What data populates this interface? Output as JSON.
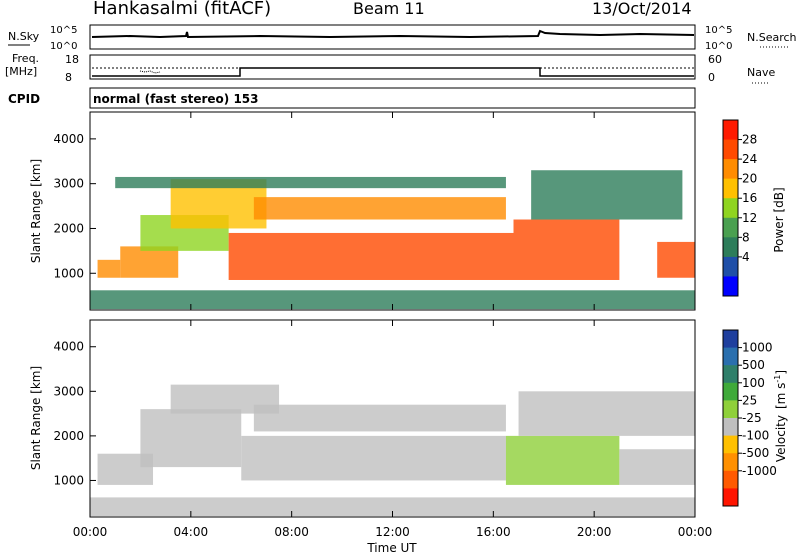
{
  "header": {
    "station": "Hankasalmi (fitACF)",
    "beam": "Beam 11",
    "date": "13/Oct/2014"
  },
  "strip": {
    "nsky_label": "N.Sky",
    "nsky_ticks": [
      "10^5",
      "10^0"
    ],
    "nsearch_label": "N.Search",
    "nsearch_ticks": [
      "10^5",
      "10^0"
    ],
    "freq_label_1": "Freq.",
    "freq_label_2": "[MHz]",
    "freq_ticks": [
      "18",
      "8"
    ],
    "nave_label": "Nave",
    "nave_ticks": [
      "60",
      "0"
    ],
    "cpid_label": "CPID",
    "cpid_value": "normal (fast stereo) 153"
  },
  "power_colorbar": {
    "label": "Power [dB]",
    "ticks": [
      "28",
      "24",
      "20",
      "16",
      "12",
      "8",
      "4"
    ],
    "colors": [
      "#ff1a00",
      "#ff4a00",
      "#ff8c00",
      "#ffc000",
      "#8fd420",
      "#4aa050",
      "#2d7d5a",
      "#1f4fa8",
      "#0000ff"
    ]
  },
  "velocity_colorbar": {
    "label_main": "Velocity",
    "label_unit": "[m s",
    "label_exp": "-1",
    "label_close": "]",
    "ticks": [
      "1000",
      "500",
      "100",
      "25",
      "-25",
      "-100",
      "-500",
      "-1000"
    ],
    "colors": [
      "#1f3f9e",
      "#2a6fae",
      "#2f7f6a",
      "#3faa3a",
      "#8fd03a",
      "#bfbfbf",
      "#ffc000",
      "#ff9000",
      "#ff5a00",
      "#ff1500"
    ]
  },
  "x_axis": {
    "label": "Time UT",
    "ticks": [
      "00:00",
      "04:00",
      "08:00",
      "12:00",
      "16:00",
      "20:00",
      "00:00"
    ]
  },
  "y_axis": {
    "label": "Slant Range [km]",
    "ticks": [
      "4000",
      "3000",
      "2000",
      "1000"
    ]
  },
  "chart_data": [
    {
      "type": "heatmap",
      "title": "",
      "xlabel": "",
      "ylabel": "Slant Range [km]",
      "xlim": [
        0,
        24
      ],
      "ylim": [
        180,
        4600
      ],
      "colorbar": "Power [dB]",
      "clim": [
        0,
        30
      ],
      "bands": [
        {
          "t": [
            0,
            24
          ],
          "r": [
            200,
            620
          ],
          "value": 6
        },
        {
          "t": [
            0.3,
            1.2
          ],
          "r": [
            900,
            1300
          ],
          "value": 24
        },
        {
          "t": [
            1.2,
            3.5
          ],
          "r": [
            900,
            1600
          ],
          "value": 22
        },
        {
          "t": [
            2.0,
            5.5
          ],
          "r": [
            1500,
            2300
          ],
          "value": 14
        },
        {
          "t": [
            3.2,
            7.0
          ],
          "r": [
            2000,
            3100
          ],
          "value": 20
        },
        {
          "t": [
            5.5,
            16.8
          ],
          "r": [
            850,
            1900
          ],
          "value": 26
        },
        {
          "t": [
            6.5,
            16.5
          ],
          "r": [
            2200,
            2700
          ],
          "value": 24
        },
        {
          "t": [
            1.0,
            16.5
          ],
          "r": [
            2900,
            3150
          ],
          "value": 8
        },
        {
          "t": [
            16.8,
            21.0
          ],
          "r": [
            850,
            2200
          ],
          "value": 27
        },
        {
          "t": [
            17.5,
            23.5
          ],
          "r": [
            2200,
            3300
          ],
          "value": 9
        },
        {
          "t": [
            22.5,
            24
          ],
          "r": [
            900,
            1700
          ],
          "value": 25
        }
      ]
    },
    {
      "type": "heatmap",
      "title": "",
      "xlabel": "Time UT",
      "ylabel": "Slant Range [km]",
      "xlim": [
        0,
        24
      ],
      "ylim": [
        180,
        4600
      ],
      "colorbar": "Velocity [m s-1]",
      "clim": [
        -1000,
        1000
      ],
      "bands": [
        {
          "t": [
            0,
            24
          ],
          "r": [
            200,
            620
          ],
          "value": -60
        },
        {
          "t": [
            0.3,
            2.5
          ],
          "r": [
            900,
            1600
          ],
          "value": -150
        },
        {
          "t": [
            2.0,
            6.0
          ],
          "r": [
            1300,
            2600
          ],
          "value": 0
        },
        {
          "t": [
            3.2,
            7.5
          ],
          "r": [
            2500,
            3150
          ],
          "value": -120
        },
        {
          "t": [
            6.0,
            16.5
          ],
          "r": [
            1000,
            2000
          ],
          "value": 0
        },
        {
          "t": [
            6.5,
            16.5
          ],
          "r": [
            2100,
            2700
          ],
          "value": -80
        },
        {
          "t": [
            16.5,
            21.0
          ],
          "r": [
            900,
            2000
          ],
          "value": 120
        },
        {
          "t": [
            17.0,
            24
          ],
          "r": [
            2000,
            3000
          ],
          "value": 0
        },
        {
          "t": [
            21.0,
            24
          ],
          "r": [
            900,
            1700
          ],
          "value": -140
        }
      ]
    }
  ]
}
